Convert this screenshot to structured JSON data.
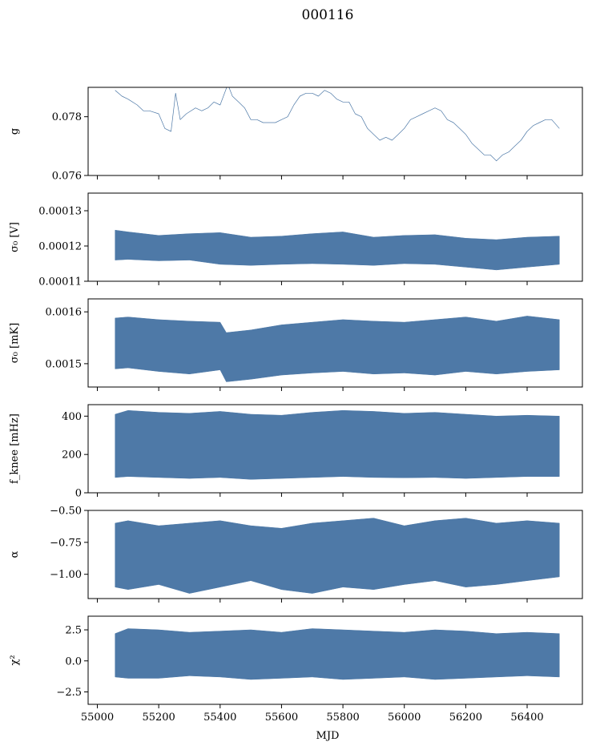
{
  "figure": {
    "title": "000116",
    "xlabel": "MJD"
  },
  "colors": {
    "series": "#4e79a7",
    "axes": "#000000",
    "background": "#ffffff"
  },
  "chart_data": [
    {
      "id": "gain",
      "type": "line",
      "ylabel": "g",
      "ylim": [
        0.076,
        0.079
      ],
      "yticks": [
        {
          "v": 0.076,
          "label": "0.076"
        },
        {
          "v": 0.078,
          "label": "0.078"
        }
      ],
      "xlim": [
        54970,
        56580
      ],
      "xticks": [
        55000,
        55200,
        55400,
        55600,
        55800,
        56000,
        56200,
        56400
      ],
      "show_xtick_labels": false,
      "series": [
        {
          "x": [
            55058,
            55080,
            55100,
            55130,
            55150,
            55170,
            55200,
            55220,
            55240,
            55255,
            55270,
            55290,
            55320,
            55340,
            55360,
            55380,
            55400,
            55425,
            55440,
            55460,
            55480,
            55500,
            55520,
            55540,
            55560,
            55580,
            55600,
            55620,
            55640,
            55660,
            55680,
            55700,
            55720,
            55740,
            55760,
            55780,
            55800,
            55820,
            55840,
            55860,
            55880,
            55900,
            55920,
            55940,
            55960,
            55980,
            56000,
            56020,
            56040,
            56060,
            56080,
            56100,
            56120,
            56140,
            56160,
            56180,
            56200,
            56220,
            56240,
            56260,
            56280,
            56300,
            56320,
            56340,
            56360,
            56380,
            56400,
            56420,
            56440,
            56460,
            56480,
            56505
          ],
          "y": [
            0.0789,
            0.0787,
            0.0786,
            0.0784,
            0.0782,
            0.0782,
            0.0781,
            0.0776,
            0.0775,
            0.0788,
            0.0779,
            0.0781,
            0.0783,
            0.0782,
            0.0783,
            0.0785,
            0.0784,
            0.0791,
            0.0787,
            0.0785,
            0.0783,
            0.0779,
            0.0779,
            0.0778,
            0.0778,
            0.0778,
            0.0779,
            0.078,
            0.0784,
            0.0787,
            0.0788,
            0.0788,
            0.0787,
            0.0789,
            0.0788,
            0.0786,
            0.0785,
            0.0785,
            0.0781,
            0.078,
            0.0776,
            0.0774,
            0.0772,
            0.0773,
            0.0772,
            0.0774,
            0.0776,
            0.0779,
            0.078,
            0.0781,
            0.0782,
            0.0783,
            0.0782,
            0.0779,
            0.0778,
            0.0776,
            0.0774,
            0.0771,
            0.0769,
            0.0767,
            0.0767,
            0.0765,
            0.0767,
            0.0768,
            0.077,
            0.0772,
            0.0775,
            0.0777,
            0.0778,
            0.0779,
            0.0779,
            0.0776
          ]
        }
      ]
    },
    {
      "id": "sigma0-volts",
      "type": "area",
      "ylabel": "σ₀ [V]",
      "ylim": [
        0.00011,
        0.000135
      ],
      "yticks": [
        {
          "v": 0.00011,
          "label": "0.00011"
        },
        {
          "v": 0.00012,
          "label": "0.00012"
        },
        {
          "v": 0.00013,
          "label": "0.00013"
        }
      ],
      "xlim": [
        54970,
        56580
      ],
      "xticks": [
        55000,
        55200,
        55400,
        55600,
        55800,
        56000,
        56200,
        56400
      ],
      "show_xtick_labels": false,
      "series": [
        {
          "x": [
            55058,
            55100,
            55200,
            55300,
            55400,
            55500,
            55600,
            55700,
            55800,
            55900,
            56000,
            56100,
            56200,
            56300,
            56400,
            56505
          ],
          "upper": [
            0.0001245,
            0.000124,
            0.000123,
            0.0001235,
            0.0001238,
            0.0001225,
            0.0001228,
            0.0001235,
            0.000124,
            0.0001225,
            0.000123,
            0.0001232,
            0.0001222,
            0.0001218,
            0.0001225,
            0.0001228
          ],
          "lower": [
            0.000116,
            0.0001162,
            0.0001158,
            0.000116,
            0.0001148,
            0.0001145,
            0.0001148,
            0.000115,
            0.0001148,
            0.0001145,
            0.000115,
            0.0001148,
            0.000114,
            0.0001132,
            0.000114,
            0.0001148
          ]
        }
      ]
    },
    {
      "id": "sigma0-mk",
      "type": "area",
      "ylabel": "σ₀ [mK]",
      "ylim": [
        0.001455,
        0.001625
      ],
      "yticks": [
        {
          "v": 0.0015,
          "label": "0.0015"
        },
        {
          "v": 0.0016,
          "label": "0.0016"
        }
      ],
      "xlim": [
        54970,
        56580
      ],
      "xticks": [
        55000,
        55200,
        55400,
        55600,
        55800,
        56000,
        56200,
        56400
      ],
      "show_xtick_labels": false,
      "series": [
        {
          "x": [
            55058,
            55100,
            55200,
            55300,
            55400,
            55420,
            55500,
            55600,
            55700,
            55800,
            55900,
            56000,
            56100,
            56200,
            56300,
            56400,
            56505
          ],
          "upper": [
            0.001588,
            0.00159,
            0.001585,
            0.001582,
            0.00158,
            0.00156,
            0.001565,
            0.001575,
            0.00158,
            0.001585,
            0.001582,
            0.00158,
            0.001585,
            0.00159,
            0.001582,
            0.001592,
            0.001585
          ],
          "lower": [
            0.00149,
            0.001492,
            0.001485,
            0.00148,
            0.001488,
            0.001465,
            0.00147,
            0.001478,
            0.001482,
            0.001485,
            0.00148,
            0.001482,
            0.001478,
            0.001485,
            0.00148,
            0.001485,
            0.001488
          ]
        }
      ]
    },
    {
      "id": "fknee",
      "type": "area",
      "ylabel": "f_knee [mHz]",
      "ylim": [
        0,
        460
      ],
      "yticks": [
        {
          "v": 0,
          "label": "0"
        },
        {
          "v": 200,
          "label": "200"
        },
        {
          "v": 400,
          "label": "400"
        }
      ],
      "xlim": [
        54970,
        56580
      ],
      "xticks": [
        55000,
        55200,
        55400,
        55600,
        55800,
        56000,
        56200,
        56400
      ],
      "show_xtick_labels": false,
      "series": [
        {
          "x": [
            55058,
            55100,
            55200,
            55300,
            55400,
            55500,
            55600,
            55700,
            55800,
            55900,
            56000,
            56100,
            56200,
            56300,
            56400,
            56505
          ],
          "upper": [
            410,
            430,
            420,
            415,
            425,
            410,
            405,
            420,
            430,
            425,
            415,
            420,
            410,
            400,
            405,
            400
          ],
          "lower": [
            80,
            85,
            80,
            75,
            80,
            70,
            75,
            80,
            85,
            80,
            78,
            80,
            75,
            80,
            85,
            85
          ]
        }
      ]
    },
    {
      "id": "alpha",
      "type": "area",
      "ylabel": "α",
      "ylim": [
        -1.19,
        -0.5
      ],
      "yticks": [
        {
          "v": -1.0,
          "label": "−1.00"
        },
        {
          "v": -0.75,
          "label": "−0.75"
        },
        {
          "v": -0.5,
          "label": "−0.50"
        }
      ],
      "xlim": [
        54970,
        56580
      ],
      "xticks": [
        55000,
        55200,
        55400,
        55600,
        55800,
        56000,
        56200,
        56400
      ],
      "show_xtick_labels": false,
      "series": [
        {
          "x": [
            55058,
            55100,
            55200,
            55300,
            55400,
            55500,
            55600,
            55700,
            55800,
            55900,
            56000,
            56100,
            56200,
            56300,
            56400,
            56505
          ],
          "upper": [
            -0.6,
            -0.58,
            -0.62,
            -0.6,
            -0.58,
            -0.62,
            -0.64,
            -0.6,
            -0.58,
            -0.56,
            -0.62,
            -0.58,
            -0.56,
            -0.6,
            -0.58,
            -0.6
          ],
          "lower": [
            -1.1,
            -1.12,
            -1.08,
            -1.15,
            -1.1,
            -1.05,
            -1.12,
            -1.15,
            -1.1,
            -1.12,
            -1.08,
            -1.05,
            -1.1,
            -1.08,
            -1.05,
            -1.02
          ]
        }
      ]
    },
    {
      "id": "chi2",
      "type": "area",
      "ylabel": "χ²",
      "ylim": [
        -3.5,
        3.6
      ],
      "yticks": [
        {
          "v": -2.5,
          "label": "−2.5"
        },
        {
          "v": 0.0,
          "label": "0.0"
        },
        {
          "v": 2.5,
          "label": "2.5"
        }
      ],
      "xlim": [
        54970,
        56580
      ],
      "xticks": [
        55000,
        55200,
        55400,
        55600,
        55800,
        56000,
        56200,
        56400
      ],
      "xtick_labels": [
        "55000",
        "55200",
        "55400",
        "55600",
        "55800",
        "56000",
        "56200",
        "56400"
      ],
      "show_xtick_labels": true,
      "series": [
        {
          "x": [
            55058,
            55100,
            55200,
            55300,
            55400,
            55500,
            55600,
            55700,
            55800,
            55900,
            56000,
            56100,
            56200,
            56300,
            56400,
            56505
          ],
          "upper": [
            2.2,
            2.6,
            2.5,
            2.3,
            2.4,
            2.5,
            2.3,
            2.6,
            2.5,
            2.4,
            2.3,
            2.5,
            2.4,
            2.2,
            2.3,
            2.2
          ],
          "lower": [
            -1.3,
            -1.4,
            -1.4,
            -1.2,
            -1.3,
            -1.5,
            -1.4,
            -1.3,
            -1.5,
            -1.4,
            -1.3,
            -1.5,
            -1.4,
            -1.3,
            -1.2,
            -1.3
          ]
        }
      ]
    }
  ]
}
